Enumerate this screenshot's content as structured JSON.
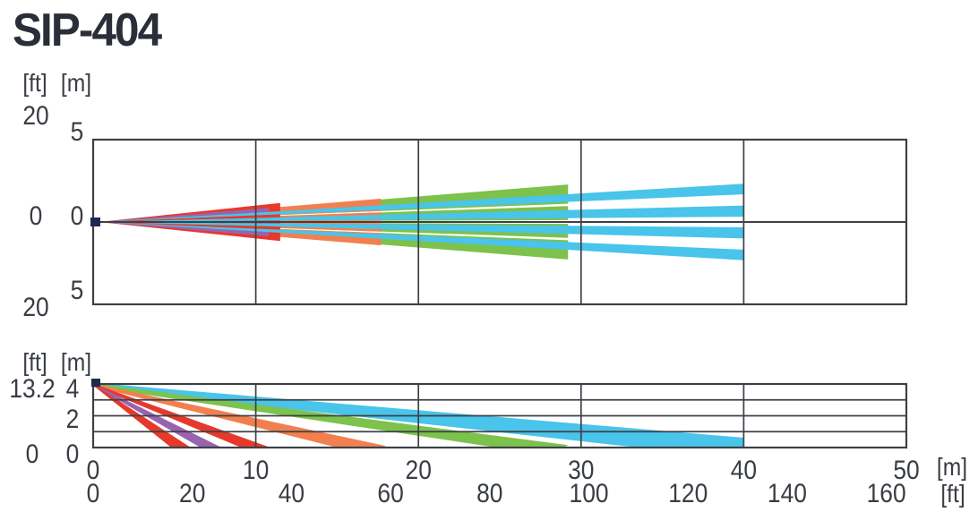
{
  "title": "SIP-404",
  "colors": {
    "red": "#e6392b",
    "purple": "#9a63ae",
    "orange": "#f2804f",
    "green": "#7cc24c",
    "cyan": "#49c4ea",
    "grid": "#3d4147",
    "text": "#393d44",
    "title": "#2b2e38",
    "sensor": "#1e2a4d",
    "background": "#ffffff"
  },
  "chart_data": [
    {
      "type": "area",
      "name": "horizontal-coverage-plan-view",
      "title": "",
      "unit_header": {
        "ft": "[ft]",
        "m": "[m]"
      },
      "x_axis": {
        "range_m": [
          0,
          50
        ],
        "gridlines_m": [
          10,
          20,
          30,
          40
        ]
      },
      "y_axis": {
        "range_m": [
          -5,
          5
        ],
        "labels": [
          {
            "pos": "top",
            "ft": "20",
            "m": "5"
          },
          {
            "pos": "center",
            "ft": "0",
            "m": "0"
          },
          {
            "pos": "bottom",
            "ft": "20",
            "m": "5"
          }
        ]
      },
      "beams": [
        {
          "zone": "30m-outer",
          "color": "green",
          "slope_min": 0.038,
          "slope_max": 0.078,
          "to_m": 29.2,
          "mirrored": true
        },
        {
          "zone": "30m-inner",
          "color": "green",
          "slope_min": 0.004,
          "slope_max": 0.033,
          "to_m": 29.2,
          "mirrored": true
        },
        {
          "zone": "18m-outer",
          "color": "orange",
          "slope_min": 0.038,
          "slope_max": 0.08,
          "to_m": 17.7,
          "mirrored": true
        },
        {
          "zone": "18m-inner",
          "color": "orange",
          "slope_min": 0.004,
          "slope_max": 0.033,
          "to_m": 17.7,
          "mirrored": true
        },
        {
          "zone": "11m-outer",
          "color": "red",
          "slope_min": 0.04,
          "slope_max": 0.1,
          "to_m": 11.5,
          "mirrored": true
        },
        {
          "zone": "11m-inner",
          "color": "red",
          "slope_min": 0.002,
          "slope_max": 0.042,
          "to_m": 11.5,
          "mirrored": true
        },
        {
          "zone": "8m-band",
          "color": "purple",
          "slope_min": 0.052,
          "slope_max": 0.08,
          "to_m": 10.8,
          "mirrored": true
        },
        {
          "zone": "40m-outer",
          "color": "cyan",
          "slope_min": 0.042,
          "slope_max": 0.058,
          "to_m": 40,
          "mirrored": true
        },
        {
          "zone": "40m-inner",
          "color": "cyan",
          "slope_min": 0.008,
          "slope_max": 0.025,
          "to_m": 40,
          "mirrored": true
        }
      ]
    },
    {
      "type": "area",
      "name": "vertical-coverage-side-view",
      "title": "",
      "unit_header": {
        "ft": "[ft]",
        "m": "[m]"
      },
      "mount_height_m": 4,
      "mount_height_ft_label": "13.2",
      "x_axis": {
        "range_m": [
          0,
          50
        ],
        "gridlines_m": [
          10,
          20,
          30,
          40
        ],
        "ticks_m": [
          "0",
          "10",
          "20",
          "30",
          "40",
          "50"
        ],
        "unit_m": "[m]",
        "ticks_ft": [
          "0",
          "20",
          "40",
          "60",
          "80",
          "100",
          "120",
          "140",
          "160"
        ],
        "unit_ft": "[ft]",
        "ft_per_m": 3.2808
      },
      "y_axis": {
        "range_m": [
          0,
          4
        ],
        "gridlines_m": [
          1,
          2,
          3
        ],
        "labels": [
          {
            "pos": "top",
            "ft": "13.2",
            "m": "4"
          },
          {
            "pos": "middle",
            "m": "2"
          },
          {
            "pos": "bottom",
            "ft": "0",
            "m": "0"
          }
        ]
      },
      "beams": [
        {
          "zone": "40m",
          "color": "cyan",
          "points_m": [
            [
              0,
              4.08
            ],
            [
              40,
              0.62
            ],
            [
              40,
              0
            ],
            [
              33.5,
              0
            ],
            [
              0,
              3.8
            ]
          ]
        },
        {
          "zone": "30m",
          "color": "green",
          "points_m": [
            [
              0,
              4.05
            ],
            [
              29.2,
              0.15
            ],
            [
              28.9,
              0
            ],
            [
              24.8,
              0
            ],
            [
              0,
              3.83
            ]
          ]
        },
        {
          "zone": "18m",
          "color": "orange",
          "points_m": [
            [
              0,
              4.03
            ],
            [
              18.0,
              0.1
            ],
            [
              17.7,
              0
            ],
            [
              15.0,
              0
            ],
            [
              0,
              3.86
            ]
          ]
        },
        {
          "zone": "11m",
          "color": "red",
          "points_m": [
            [
              0,
              4.02
            ],
            [
              10.9,
              0
            ],
            [
              9.1,
              0
            ],
            [
              0,
              3.88
            ]
          ]
        },
        {
          "zone": "8m",
          "color": "purple",
          "points_m": [
            [
              0,
              4.01
            ],
            [
              7.9,
              0
            ],
            [
              6.6,
              0
            ],
            [
              0,
              3.9
            ]
          ]
        },
        {
          "zone": "6m",
          "color": "red",
          "points_m": [
            [
              0,
              4.0
            ],
            [
              6.0,
              0
            ],
            [
              4.8,
              0
            ],
            [
              0,
              3.91
            ]
          ]
        }
      ]
    }
  ]
}
